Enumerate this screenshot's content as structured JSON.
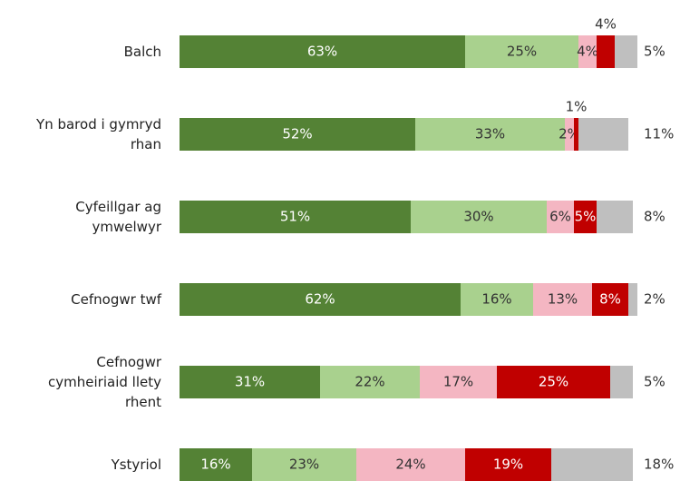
{
  "chart_data": {
    "type": "stacked-bar-horizontal",
    "categories": [
      "Balch",
      "Yn barod i gymryd\nrhan",
      "Cyfeillgar ag\nymwelwyr",
      "Cefnogwr twf",
      "Cefnogwr\ncymheiriaid llety\nrhent",
      "Ystyriol"
    ],
    "xlim": [
      0,
      100
    ],
    "series": [
      {
        "color": "#548235",
        "values": [
          63,
          52,
          51,
          62,
          31,
          16
        ],
        "value_labels": [
          "63%",
          "52%",
          "51%",
          "62%",
          "31%",
          "16%"
        ]
      },
      {
        "color": "#a9d18e",
        "values": [
          25,
          33,
          30,
          16,
          22,
          23
        ],
        "value_labels": [
          "25%",
          "33%",
          "30%",
          "16%",
          "22%",
          "23%"
        ]
      },
      {
        "color": "#f4b6c2",
        "values": [
          4,
          2,
          6,
          13,
          17,
          24
        ],
        "value_labels": [
          "4%",
          "2%",
          "6%",
          "13%",
          "17%",
          "24%"
        ]
      },
      {
        "color": "#c00000",
        "values": [
          4,
          1,
          5,
          8,
          25,
          19
        ],
        "value_labels": [
          "4%",
          "1%",
          "5%",
          "8%",
          "25%",
          "19%"
        ]
      },
      {
        "color": "#bfbfbf",
        "values": [
          5,
          11,
          8,
          2,
          5,
          18
        ],
        "value_labels": [
          "5%",
          "11%",
          "8%",
          "2%",
          "5%",
          "18%"
        ]
      }
    ]
  }
}
